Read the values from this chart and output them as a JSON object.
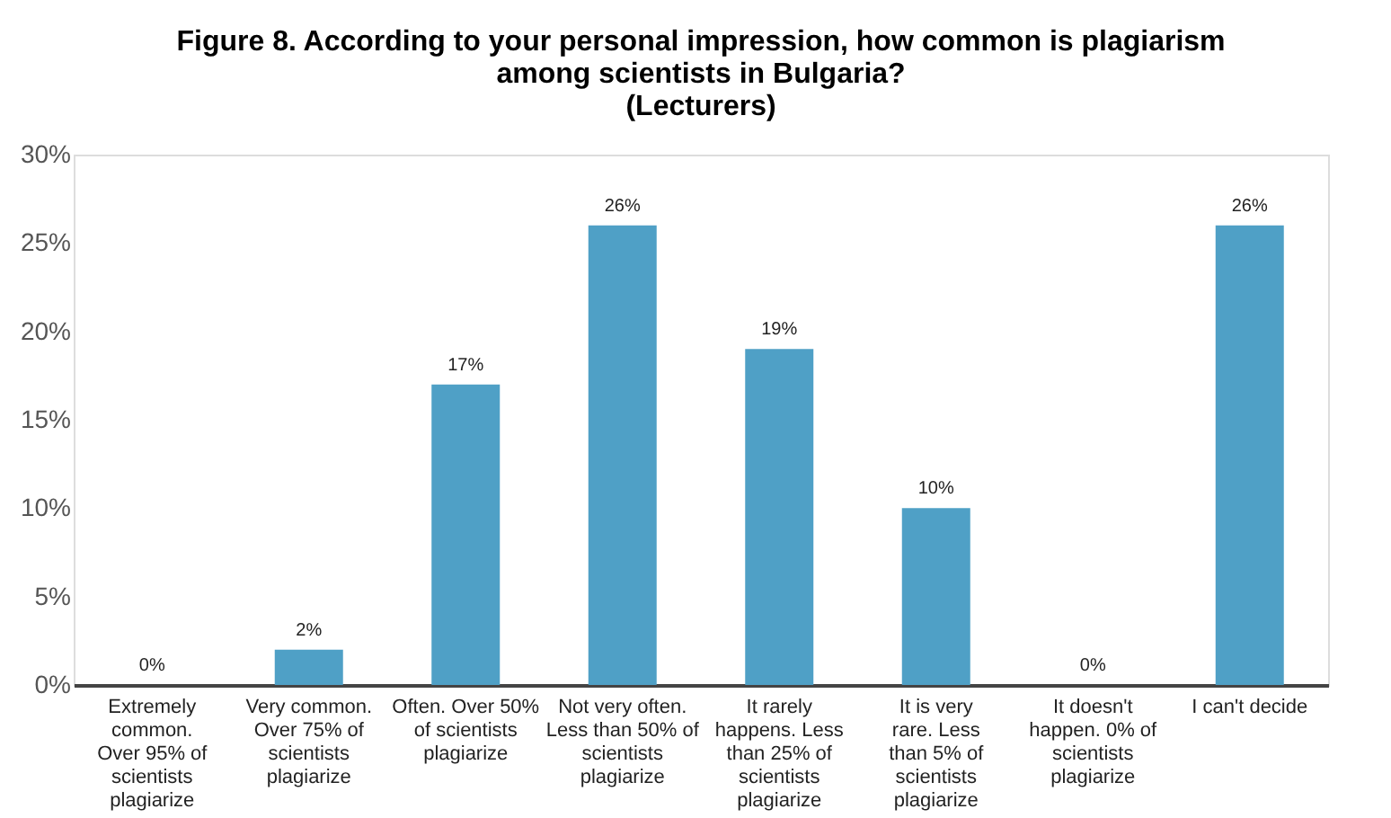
{
  "chart_data": {
    "type": "bar",
    "title": "Figure 8. According to your personal impression, how common is plagiarism\namong scientists in Bulgaria?",
    "subtitle": "(Lecturers)",
    "categories": [
      "Extremely\ncommon.\nOver 95% of\nscientists\nplagiarize",
      "Very common.\nOver 75%  of\nscientists\nplagiarize",
      "Often. Over 50%\nof scientists\nplagiarize",
      "Not very often.\nLess than 50% of\nscientists\nplagiarize",
      "It rarely\nhappens. Less\nthan 25% of\nscientists\nplagiarize",
      "It is very\nrare. Less\nthan 5% of\nscientists\nplagiarize",
      "It doesn't\nhappen. 0% of\nscientists\nplagiarize",
      "I can't decide"
    ],
    "values": [
      0,
      2,
      17,
      26,
      19,
      10,
      0,
      26
    ],
    "value_labels": [
      "0%",
      "2%",
      "17%",
      "26%",
      "19%",
      "10%",
      "0%",
      "26%"
    ],
    "color": "#4fa0c6",
    "ylim": [
      0,
      30
    ],
    "yticks": [
      {
        "value": 0,
        "label": "0%"
      },
      {
        "value": 5,
        "label": "5%"
      },
      {
        "value": 10,
        "label": "10%"
      },
      {
        "value": 15,
        "label": "15%"
      },
      {
        "value": 20,
        "label": "20%"
      },
      {
        "value": 25,
        "label": "25%"
      },
      {
        "value": 30,
        "label": "30%"
      }
    ],
    "grid": false
  }
}
